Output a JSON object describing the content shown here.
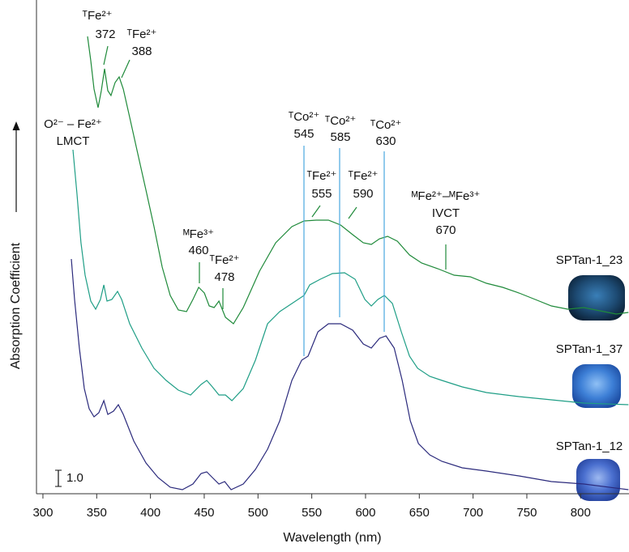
{
  "chart_data": {
    "type": "line",
    "x_label": "Wavelength (nm)",
    "y_label": "Absorption Coefficient",
    "xlim": [
      294,
      845
    ],
    "xticks": [
      300,
      350,
      400,
      450,
      500,
      550,
      600,
      650,
      700,
      750,
      800
    ],
    "ylim": [
      0,
      30.5
    ],
    "scale_bar": {
      "value": 1,
      "label": "1.0"
    },
    "series": [
      {
        "name": "SPTan-1_23",
        "color": "#1f8a3a",
        "x": [
          341.5,
          344.5,
          347.5,
          351.3,
          354.3,
          357.3,
          360.3,
          363.3,
          367.1,
          370.9,
          374.7,
          380.7,
          388.2,
          395.8,
          403.3,
          410.9,
          418.4,
          425.9,
          433.5,
          439.5,
          444.8,
          450.1,
          454.6,
          459.2,
          463.7,
          469.7,
          477.2,
          486.3,
          501.4,
          516.4,
          531.5,
          542.8,
          554.1,
          565.5,
          576.8,
          588.1,
          597.9,
          605.4,
          613,
          620.5,
          629.6,
          640.9,
          652.2,
          667.3,
          682.4,
          697.4,
          712.5,
          727.6,
          742.7,
          757.8,
          772.9,
          788,
          803,
          818,
          833,
          844.5
        ],
        "values": [
          28.25,
          26.75,
          25,
          23.85,
          24.9,
          26.25,
          24.9,
          24.6,
          25.4,
          25.75,
          25,
          23.25,
          21,
          18.75,
          16.5,
          14,
          12.25,
          11.35,
          11.25,
          12,
          12.75,
          12.4,
          11.6,
          11.5,
          11.9,
          10.9,
          10.5,
          11.5,
          13.75,
          15.5,
          16.5,
          16.85,
          16.9,
          16.9,
          16.6,
          16,
          15.5,
          15.4,
          15.75,
          15.9,
          15.6,
          14.75,
          14.25,
          13.9,
          13.5,
          13.4,
          13,
          12.75,
          12.4,
          12,
          11.6,
          11.4,
          11.5,
          11.3,
          11.1,
          11.2
        ]
      },
      {
        "name": "SPTan-1_37",
        "color": "#1f9e86",
        "x": [
          327.9,
          331.7,
          335.4,
          339.2,
          344.5,
          349,
          353.5,
          356.6,
          359.6,
          364.1,
          369.4,
          373.2,
          380.7,
          392,
          403.3,
          414.6,
          425.9,
          437.3,
          447.1,
          452.4,
          457.6,
          463.7,
          469.7,
          475.7,
          486.3,
          497.6,
          508.9,
          520.2,
          531.5,
          542.8,
          548.1,
          557.9,
          569.2,
          580.5,
          590.3,
          599.4,
          605.4,
          611.5,
          617.5,
          625,
          633.3,
          640.9,
          648.4,
          659.7,
          671,
          689.9,
          712.5,
          742.7,
          772.9,
          803,
          844.5
        ],
        "values": [
          21.25,
          18.5,
          15.5,
          13.5,
          11.9,
          11.4,
          12,
          12.9,
          11.9,
          12,
          12.5,
          12,
          10.5,
          9,
          7.75,
          7,
          6.4,
          6.1,
          6.75,
          7,
          6.6,
          6.1,
          6.1,
          5.75,
          6.5,
          8.25,
          10.5,
          11.25,
          11.75,
          12.25,
          12.9,
          13.25,
          13.6,
          13.65,
          13.25,
          12,
          11.6,
          12,
          12.25,
          11.75,
          10,
          8.5,
          7.75,
          7.25,
          7,
          6.6,
          6.25,
          6,
          5.8,
          5.6,
          5.5
        ]
      },
      {
        "name": "SPTan-1_12",
        "color": "#2b2a7c",
        "x": [
          326.4,
          329.4,
          333.9,
          338.5,
          343,
          347.5,
          352,
          356.6,
          360.3,
          365.6,
          370.1,
          374.7,
          384.5,
          395.8,
          407.1,
          418.4,
          429.7,
          439.5,
          447.1,
          452.4,
          457.6,
          463.7,
          469,
          475,
          486.3,
          497.6,
          508.9,
          520.2,
          531.5,
          540.6,
          546.6,
          555.7,
          565.5,
          576.8,
          588.1,
          597.9,
          605.4,
          613,
          619,
          626.6,
          634.1,
          641.6,
          649.2,
          659.7,
          671,
          689.9,
          712.5,
          742.7,
          772.9,
          803,
          844.5
        ],
        "values": [
          14.5,
          12,
          9,
          6.5,
          5.25,
          4.75,
          5,
          5.75,
          4.9,
          5.1,
          5.5,
          4.9,
          3.25,
          1.9,
          1,
          0.4,
          0.25,
          0.6,
          1.25,
          1.35,
          1,
          0.6,
          0.75,
          0.25,
          0.6,
          1.5,
          2.75,
          4.5,
          7,
          8.25,
          8.5,
          10,
          10.5,
          10.5,
          10.1,
          9.25,
          9,
          9.6,
          9.75,
          9,
          7,
          4.5,
          3.1,
          2.4,
          2,
          1.6,
          1.4,
          1.1,
          0.75,
          0.6,
          0.25
        ]
      }
    ],
    "annotations": [
      {
        "species": "ᵀFe²⁺",
        "wavelength": 372
      },
      {
        "species": "ᵀFe²⁺",
        "wavelength": 388
      },
      {
        "species": "O²⁻ – Fe²⁺",
        "note": "LMCT"
      },
      {
        "species": "ᴹFe³⁺",
        "wavelength": 460
      },
      {
        "species": "ᵀFe²⁺",
        "wavelength": 478
      },
      {
        "species": "ᵀCo²⁺",
        "wavelength": 545
      },
      {
        "species": "ᵀCo²⁺",
        "wavelength": 585
      },
      {
        "species": "ᵀCo²⁺",
        "wavelength": 630
      },
      {
        "species": "ᵀFe²⁺",
        "wavelength": 555
      },
      {
        "species": "ᵀFe²⁺",
        "wavelength": 590
      },
      {
        "species": "ᴹFe²⁺–ᴹFe³⁺",
        "note": "IVCT",
        "wavelength": 670
      }
    ]
  }
}
